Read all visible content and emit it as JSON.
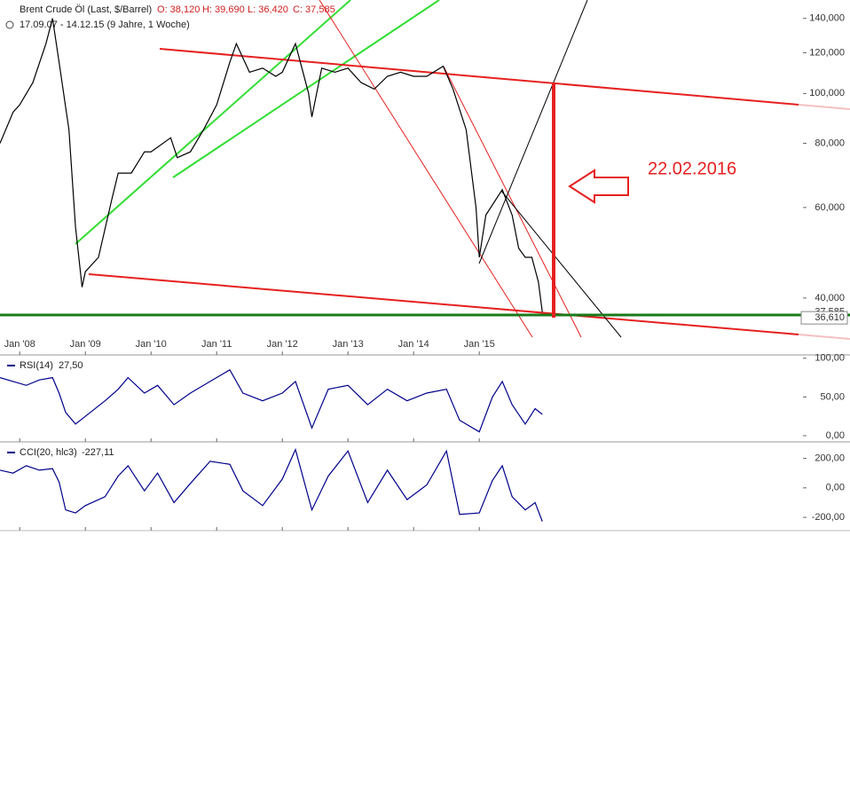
{
  "chart_data": [
    {
      "type": "line",
      "title": "Brent Crude Öl (Last, $/Barrel)",
      "quote": [
        "O: 38,120",
        "H: 39,690",
        "L: 36,420",
        "C: 37,585"
      ],
      "subtitle": "17.09.07 - 14.12.15 (9 Jahre, 1 Woche)",
      "annotation": "22.02.2016",
      "log_y": true,
      "xlim": [
        2007.7,
        2019.93
      ],
      "ylim": [
        31,
        152
      ],
      "xticks": [
        {
          "value": 2008,
          "label": "Jan '08"
        },
        {
          "value": 2009,
          "label": "Jan '09"
        },
        {
          "value": 2010,
          "label": "Jan '10"
        },
        {
          "value": 2011,
          "label": "Jan '11"
        },
        {
          "value": 2012,
          "label": "Jan '12"
        },
        {
          "value": 2013,
          "label": "Jan '13"
        },
        {
          "value": 2014,
          "label": "Jan '14"
        },
        {
          "value": 2015,
          "label": "Jan '15"
        }
      ],
      "yticks": [
        {
          "value": 40,
          "label": "40,000"
        },
        {
          "value": 60,
          "label": "60,000"
        },
        {
          "value": 80,
          "label": "80,000"
        },
        {
          "value": 100,
          "label": "100,000"
        },
        {
          "value": 120,
          "label": "120,000"
        },
        {
          "value": 140,
          "label": "140,000"
        }
      ],
      "price_labels": [
        {
          "value": 37.585,
          "label": "37,585"
        },
        {
          "value": 36.61,
          "label": "36,610"
        }
      ],
      "x": [
        2007.7,
        2007.9,
        2008.0,
        2008.2,
        2008.4,
        2008.5,
        2008.6,
        2008.75,
        2008.85,
        2008.95,
        2009.0,
        2009.2,
        2009.4,
        2009.5,
        2009.7,
        2009.9,
        2010.0,
        2010.3,
        2010.4,
        2010.6,
        2010.8,
        2011.0,
        2011.2,
        2011.3,
        2011.5,
        2011.7,
        2011.9,
        2012.0,
        2012.2,
        2012.4,
        2012.45,
        2012.6,
        2012.8,
        2013.0,
        2013.2,
        2013.4,
        2013.6,
        2013.8,
        2014.0,
        2014.2,
        2014.45,
        2014.6,
        2014.8,
        2014.95,
        2015.0,
        2015.1,
        2015.35,
        2015.5,
        2015.6,
        2015.7,
        2015.8,
        2015.9,
        2015.96
      ],
      "series": [
        {
          "name": "Brent",
          "color": "#000000",
          "values": [
            80,
            92,
            95,
            105,
            125,
            140,
            115,
            85,
            55,
            42,
            45,
            48,
            62,
            70,
            70,
            77,
            77,
            82,
            75,
            77,
            85,
            95,
            115,
            125,
            110,
            112,
            108,
            110,
            125,
            100,
            90,
            112,
            110,
            112,
            105,
            102,
            108,
            110,
            108,
            108,
            113,
            102,
            85,
            60,
            48,
            58,
            65,
            58,
            50,
            48,
            48,
            43,
            37.585
          ]
        }
      ]
    },
    {
      "type": "line",
      "title": "RSI(14)",
      "last": "27,50",
      "xlim": [
        2007.7,
        2019.93
      ],
      "ylim": [
        -8,
        102
      ],
      "yticks": [
        {
          "value": 0,
          "label": "0,00"
        },
        {
          "value": 50,
          "label": "50,00"
        },
        {
          "value": 100,
          "label": "100,00"
        }
      ],
      "x": [
        2007.7,
        2007.9,
        2008.1,
        2008.3,
        2008.5,
        2008.6,
        2008.7,
        2008.85,
        2009.0,
        2009.3,
        2009.5,
        2009.65,
        2009.9,
        2010.1,
        2010.35,
        2010.6,
        2010.9,
        2011.2,
        2011.4,
        2011.7,
        2012.0,
        2012.2,
        2012.45,
        2012.7,
        2013.0,
        2013.3,
        2013.6,
        2013.9,
        2014.2,
        2014.5,
        2014.7,
        2015.0,
        2015.2,
        2015.35,
        2015.5,
        2015.7,
        2015.85,
        2015.96
      ],
      "series": [
        {
          "name": "RSI",
          "color": "#00008b",
          "values": [
            75,
            70,
            65,
            72,
            75,
            55,
            30,
            15,
            25,
            45,
            60,
            75,
            55,
            65,
            40,
            55,
            70,
            85,
            55,
            45,
            55,
            70,
            10,
            60,
            65,
            40,
            60,
            45,
            55,
            60,
            20,
            5,
            50,
            70,
            40,
            15,
            35,
            27.5
          ]
        }
      ]
    },
    {
      "type": "line",
      "title": "CCI(20, hlc3)",
      "last": "-227,11",
      "xlim": [
        2007.7,
        2019.93
      ],
      "ylim": [
        -290,
        300
      ],
      "yticks": [
        {
          "value": -200,
          "label": "-200,00"
        },
        {
          "value": 0,
          "label": "0,00"
        },
        {
          "value": 200,
          "label": "200,00"
        }
      ],
      "x": [
        2007.7,
        2007.9,
        2008.1,
        2008.3,
        2008.5,
        2008.6,
        2008.7,
        2008.85,
        2009.0,
        2009.3,
        2009.5,
        2009.65,
        2009.9,
        2010.1,
        2010.35,
        2010.6,
        2010.9,
        2011.2,
        2011.4,
        2011.7,
        2012.0,
        2012.2,
        2012.45,
        2012.7,
        2013.0,
        2013.3,
        2013.6,
        2013.9,
        2014.2,
        2014.5,
        2014.7,
        2015.0,
        2015.2,
        2015.35,
        2015.5,
        2015.7,
        2015.85,
        2015.96
      ],
      "series": [
        {
          "name": "CCI",
          "color": "#00008b",
          "values": [
            120,
            100,
            150,
            120,
            130,
            40,
            -150,
            -170,
            -120,
            -60,
            80,
            150,
            -20,
            100,
            -100,
            30,
            180,
            160,
            -20,
            -120,
            60,
            260,
            -150,
            80,
            250,
            -100,
            120,
            -80,
            20,
            250,
            -180,
            -170,
            50,
            150,
            -60,
            -150,
            -100,
            -227.11
          ]
        }
      ]
    }
  ]
}
